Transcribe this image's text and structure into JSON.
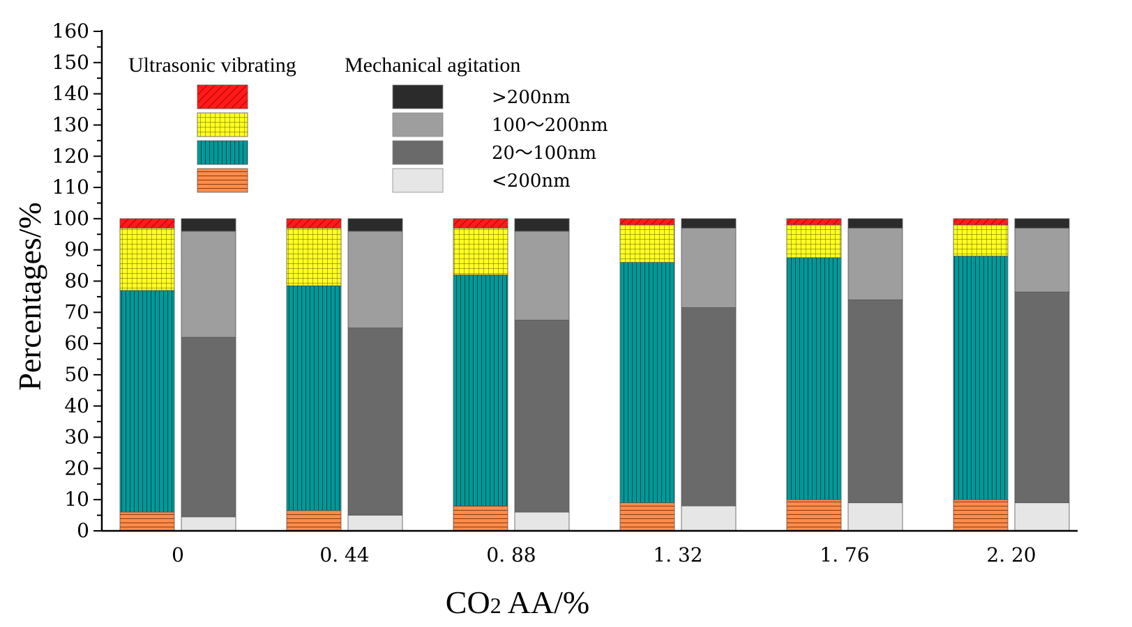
{
  "chart_data": {
    "type": "bar",
    "stacked": true,
    "xlabel_main": "CO",
    "xlabel_sub": "2",
    "xlabel_rest": " AA/%",
    "ylabel": "Percentages/%",
    "ylim": [
      0,
      160
    ],
    "yticks": [
      0,
      10,
      20,
      30,
      40,
      50,
      60,
      70,
      80,
      90,
      100,
      110,
      120,
      130,
      140,
      150,
      160
    ],
    "categories": [
      "0",
      "0. 44",
      "0. 88",
      "1. 32",
      "1. 76",
      "2. 20"
    ],
    "groups": [
      {
        "name": "Ultrasonic vibrating",
        "segments": [
          {
            "size": "<200nm",
            "values": [
              6,
              6.5,
              8,
              9,
              10,
              10
            ]
          },
          {
            "size": "20～100nm",
            "values": [
              71,
              72,
              74,
              77,
              77.5,
              78
            ]
          },
          {
            "size": "100～200nm",
            "values": [
              20,
              18.5,
              15,
              12,
              10.5,
              10
            ]
          },
          {
            "size": ">200nm",
            "values": [
              3,
              3,
              3,
              2,
              2,
              2
            ]
          }
        ]
      },
      {
        "name": "Mechanical agitation",
        "segments": [
          {
            "size": "<200nm",
            "values": [
              4.5,
              5,
              6,
              8,
              9,
              9
            ]
          },
          {
            "size": "20～100nm",
            "values": [
              57.5,
              60,
              61.5,
              63.5,
              65,
              67.5
            ]
          },
          {
            "size": "100～200nm",
            "values": [
              34,
              31,
              28.5,
              25.5,
              23,
              20.5
            ]
          },
          {
            "size": ">200nm",
            "values": [
              4,
              4,
              4,
              3,
              3,
              3
            ]
          }
        ]
      }
    ],
    "legend": {
      "group_headers": [
        "Ultrasonic vibrating",
        "Mechanical agitation"
      ],
      "size_labels": [
        ">200nm",
        "100～200nm",
        "20～100nm",
        "<200nm"
      ],
      "placement": "top-left"
    },
    "colors": {
      "ultrasonic": {
        ">200nm": "#ff1a1a",
        "100～200nm": "#ffff22",
        "20～100nm": "#009999",
        "<200nm": "#ff8c4a"
      },
      "mechanical": {
        ">200nm": "#2b2b2b",
        "100～200nm": "#9e9e9e",
        "20～100nm": "#6a6a6a",
        "<200nm": "#e6e6e6"
      }
    }
  }
}
